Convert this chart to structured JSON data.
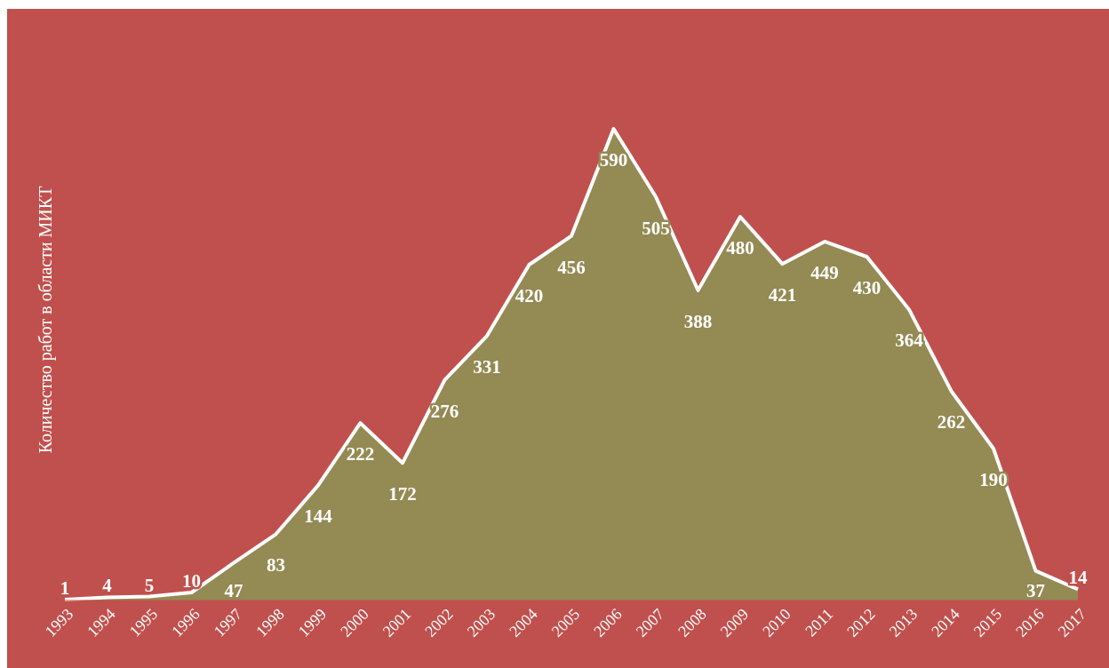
{
  "chart_data": {
    "type": "area",
    "ylabel": "Количество работ в области МИКТ",
    "categories": [
      "1993",
      "1994",
      "1995",
      "1996",
      "1997",
      "1998",
      "1999",
      "2000",
      "2001",
      "2002",
      "2003",
      "2004",
      "2005",
      "2006",
      "2007",
      "2008",
      "2009",
      "2010",
      "2011",
      "2012",
      "2013",
      "2014",
      "2015",
      "2016",
      "2017"
    ],
    "values": [
      1,
      4,
      5,
      10,
      47,
      83,
      144,
      222,
      172,
      276,
      331,
      420,
      456,
      590,
      505,
      388,
      480,
      421,
      449,
      430,
      364,
      262,
      190,
      37,
      14
    ],
    "value_labels": [
      "1",
      "4",
      "5",
      "10",
      "47",
      "83",
      "144",
      "222",
      "172",
      "276",
      "331",
      "420",
      "456",
      "590",
      "505",
      "388",
      "480",
      "421",
      "449",
      "430",
      "364",
      "262",
      "190",
      "37",
      "14"
    ],
    "color": "#948a54",
    "grid": false
  }
}
